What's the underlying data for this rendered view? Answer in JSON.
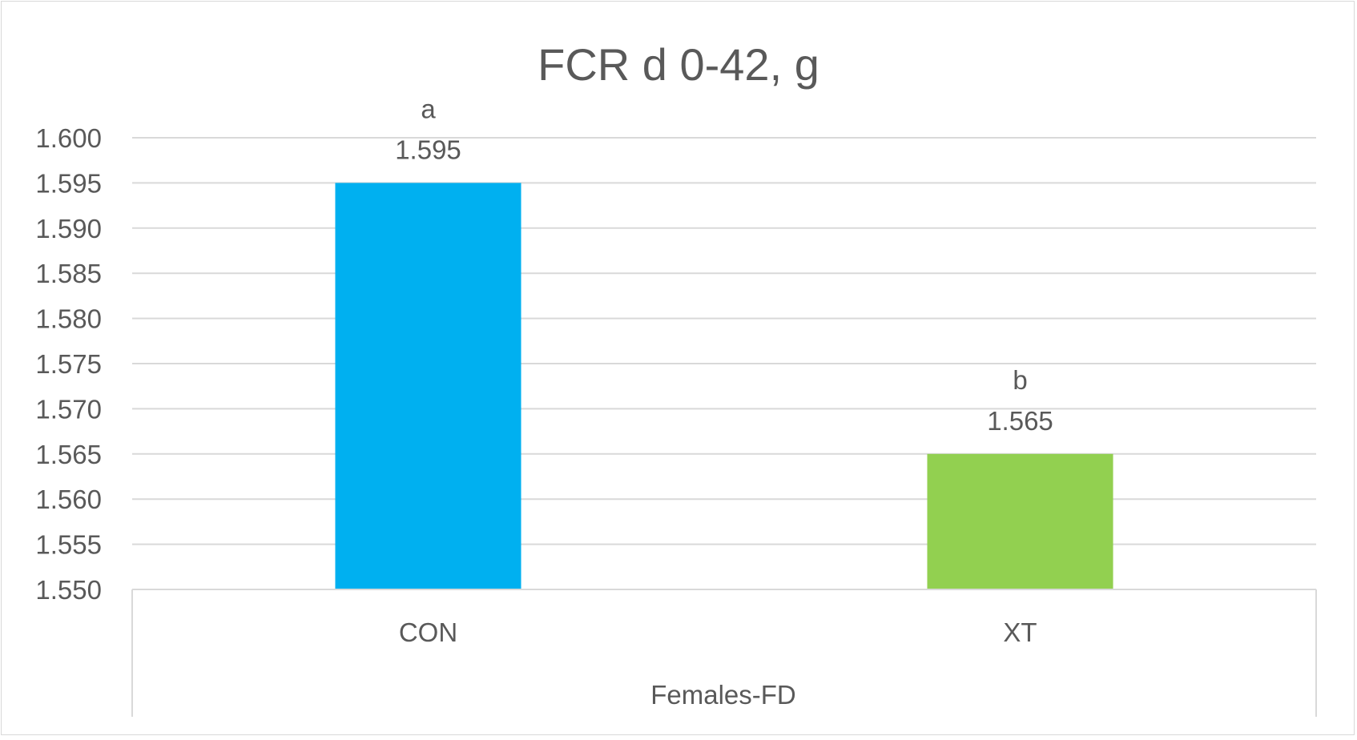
{
  "chart_data": {
    "type": "bar",
    "title": "FCR d 0-42, g",
    "xlabel": "",
    "ylabel": "",
    "group_label": "Females-FD",
    "categories": [
      "CON",
      "XT"
    ],
    "values": [
      1.595,
      1.565
    ],
    "significance_letters": [
      "a",
      "b"
    ],
    "value_labels": [
      "1.595",
      "1.565"
    ],
    "colors": [
      "#00b0f0",
      "#92d050"
    ],
    "ylim": [
      1.55,
      1.6
    ],
    "ytick_labels": [
      "1.550",
      "1.555",
      "1.560",
      "1.565",
      "1.570",
      "1.575",
      "1.580",
      "1.585",
      "1.590",
      "1.595",
      "1.600"
    ],
    "grid": true,
    "legend": "none"
  }
}
